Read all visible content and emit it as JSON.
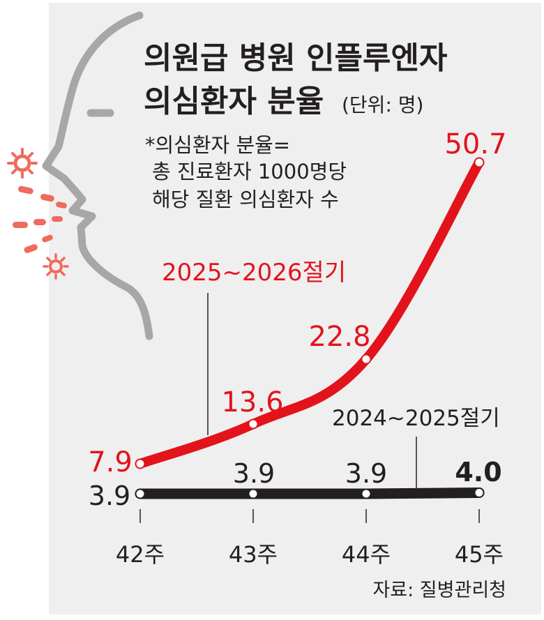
{
  "chart_data": {
    "type": "line",
    "title_line1": "의원급 병원 인플루엔자",
    "title_line2": "의심환자 분율",
    "unit": "(단위: 명)",
    "note": [
      "*의심환자 분율=",
      "총 진료환자 1000명당",
      "해당 질환 의심환자 수"
    ],
    "categories": [
      "42주",
      "43주",
      "44주",
      "45주"
    ],
    "series": [
      {
        "name": "2025~2026절기",
        "values": [
          7.9,
          13.6,
          22.8,
          50.7
        ],
        "labels": [
          "7.9",
          "13.6",
          "22.8",
          "50.7"
        ],
        "color": "#e3131b"
      },
      {
        "name": "2024~2025절기",
        "values": [
          3.9,
          3.9,
          3.9,
          4.0
        ],
        "labels": [
          "3.9",
          "3.9",
          "3.9",
          "4.0"
        ],
        "color": "#231f20"
      }
    ],
    "ylim": [
      0,
      54
    ],
    "source": "자료: 질병관리청"
  },
  "colors": {
    "background": "#efefef",
    "face": "#a7a7a7",
    "virus": "#ee6b5e",
    "red": "#e3131b",
    "black": "#231f20"
  }
}
